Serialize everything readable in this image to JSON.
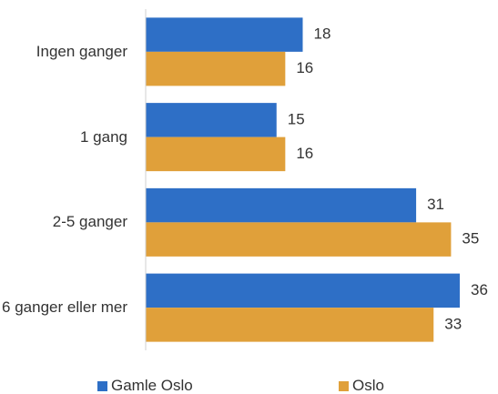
{
  "chart_data": {
    "type": "bar",
    "orientation": "horizontal",
    "categories": [
      "Ingen ganger",
      "1 gang",
      "2-5 ganger",
      "6 ganger eller mer"
    ],
    "series": [
      {
        "name": "Gamle Oslo",
        "color": "#2e6fc6",
        "values": [
          18,
          15,
          31,
          36
        ]
      },
      {
        "name": "Oslo",
        "color": "#e0a03a",
        "values": [
          16,
          16,
          35,
          33
        ]
      }
    ],
    "legend": "bottom"
  }
}
